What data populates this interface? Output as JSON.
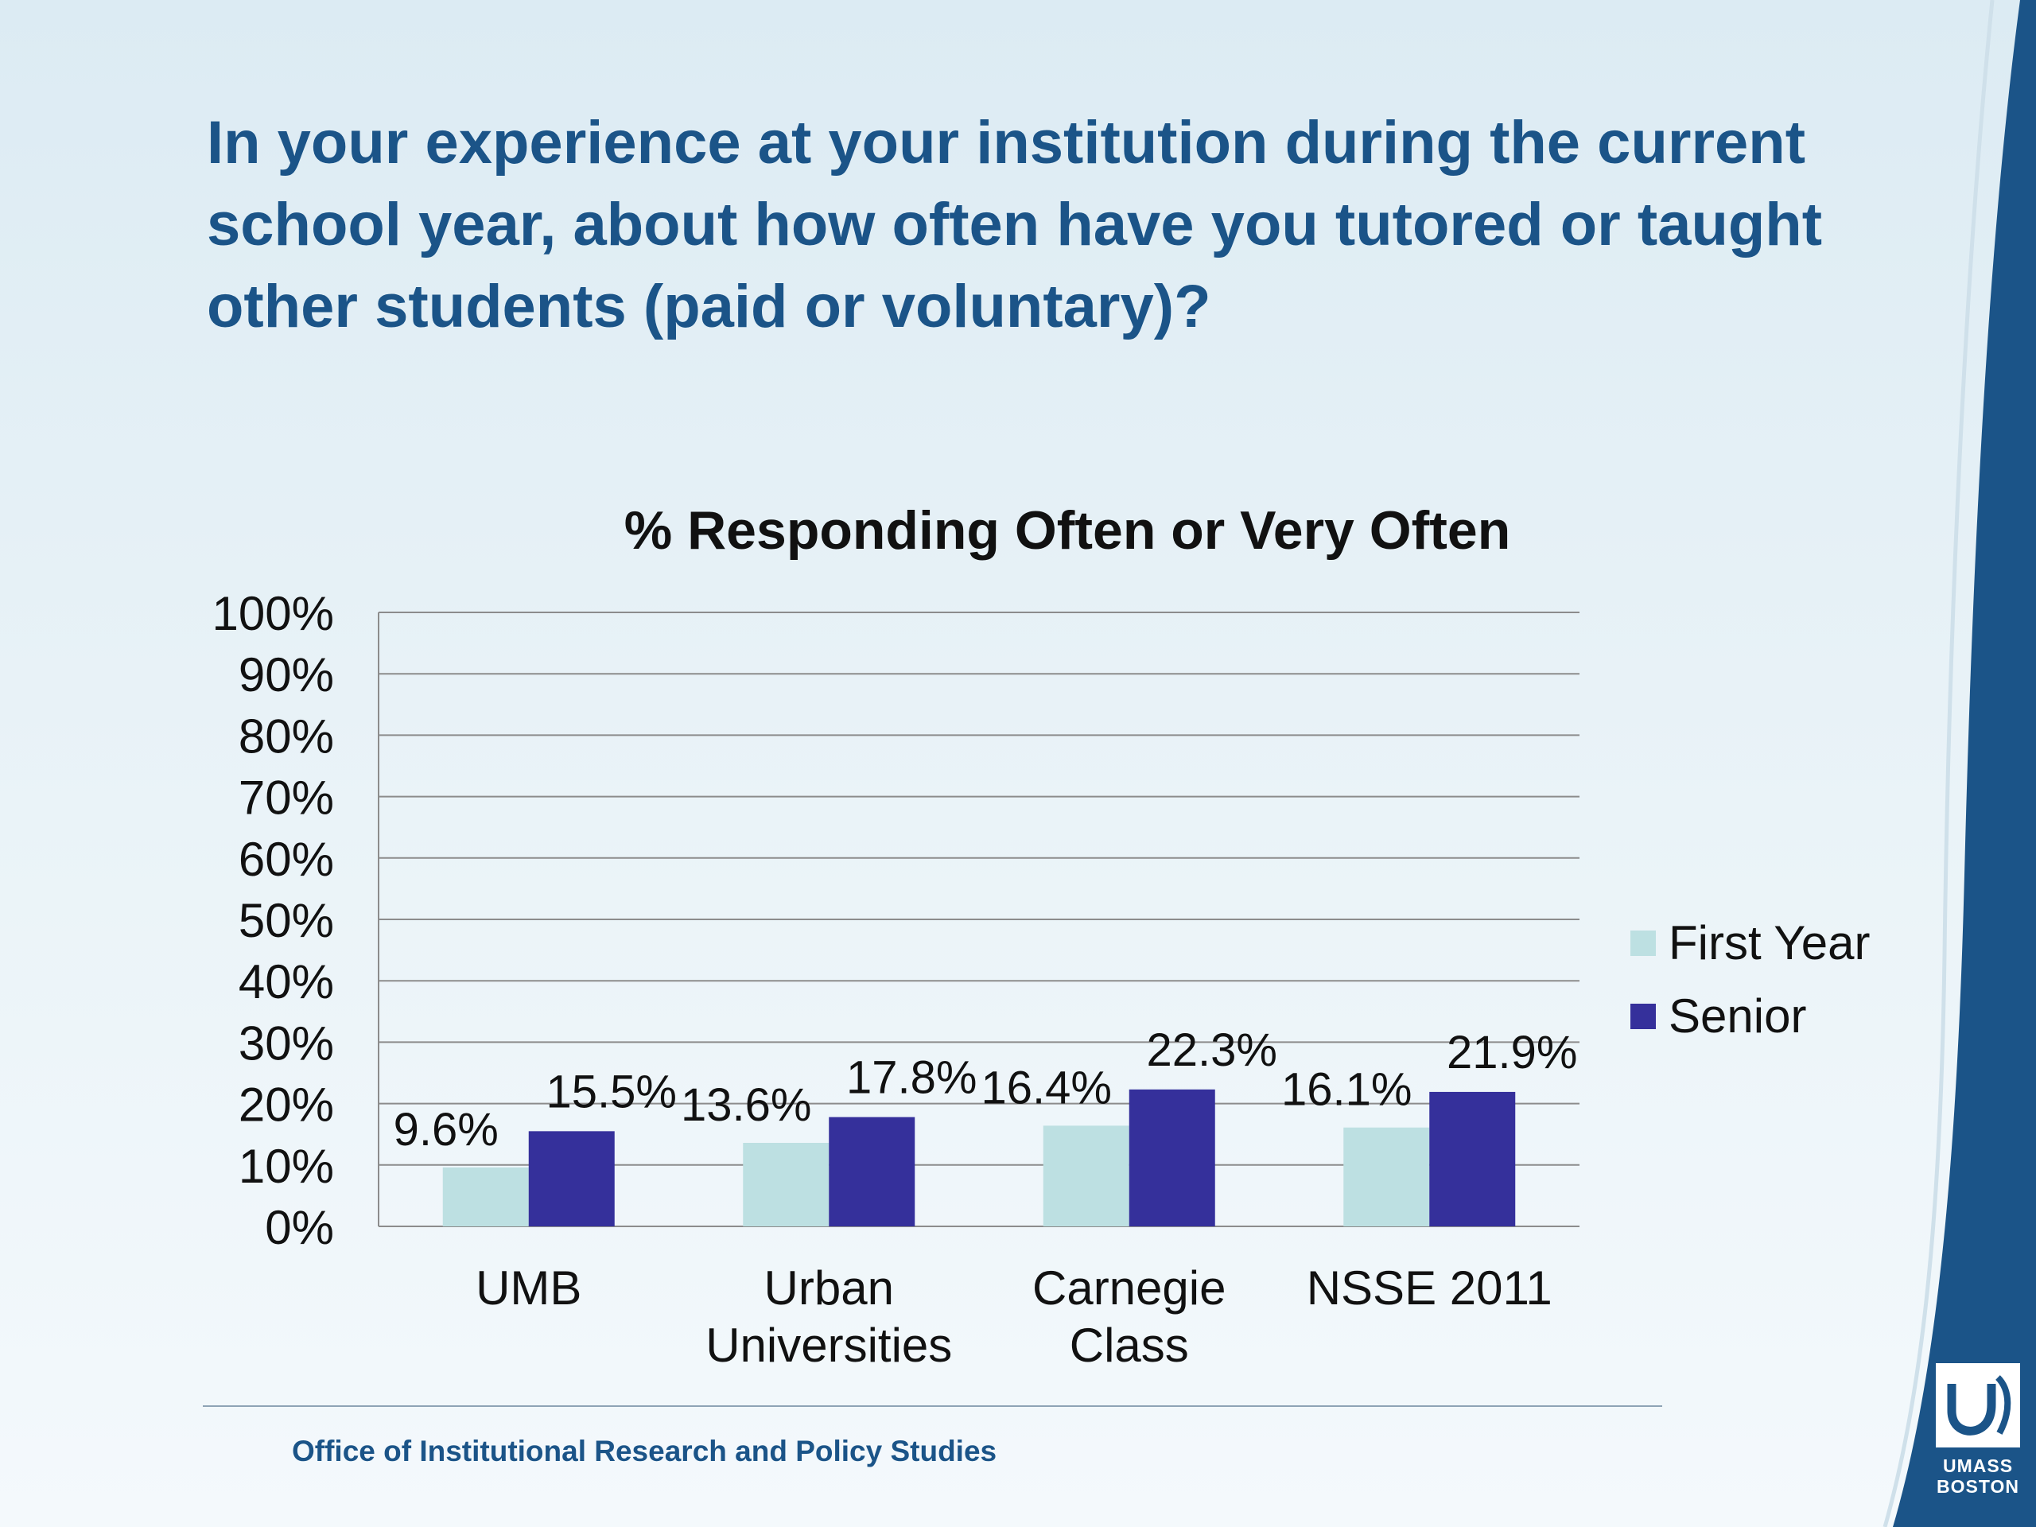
{
  "slide": {
    "title": "In your experience at your institution during the current school year, about how often have you tutored or taught other students (paid or voluntary)?",
    "footer": "Office of Institutional Research and Policy Studies",
    "logo_line1": "UMASS",
    "logo_line2": "BOSTON"
  },
  "colors": {
    "title": "#1b5488",
    "first_year": "#bde0e2",
    "senior": "#35309b",
    "swoosh": "#1b5488"
  },
  "chart_data": {
    "type": "bar",
    "title": "% Responding Often or Very Often",
    "categories": [
      [
        "UMB"
      ],
      [
        "Urban",
        "Universities"
      ],
      [
        "Carnegie",
        "Class"
      ],
      [
        "NSSE 2011"
      ]
    ],
    "series": [
      {
        "name": "First Year",
        "values": [
          9.6,
          13.6,
          16.4,
          16.1
        ],
        "labels": [
          "9.6%",
          "13.6%",
          "16.4%",
          "16.1%"
        ],
        "color": "#bde0e2"
      },
      {
        "name": "Senior",
        "values": [
          15.5,
          17.8,
          22.3,
          21.9
        ],
        "labels": [
          "15.5%",
          "17.8%",
          "22.3%",
          "21.9%"
        ],
        "color": "#35309b"
      }
    ],
    "ylim": [
      0,
      100
    ],
    "yticks": [
      "0%",
      "10%",
      "20%",
      "30%",
      "40%",
      "50%",
      "60%",
      "70%",
      "80%",
      "90%",
      "100%"
    ],
    "grid": true,
    "legend_position": "right"
  }
}
